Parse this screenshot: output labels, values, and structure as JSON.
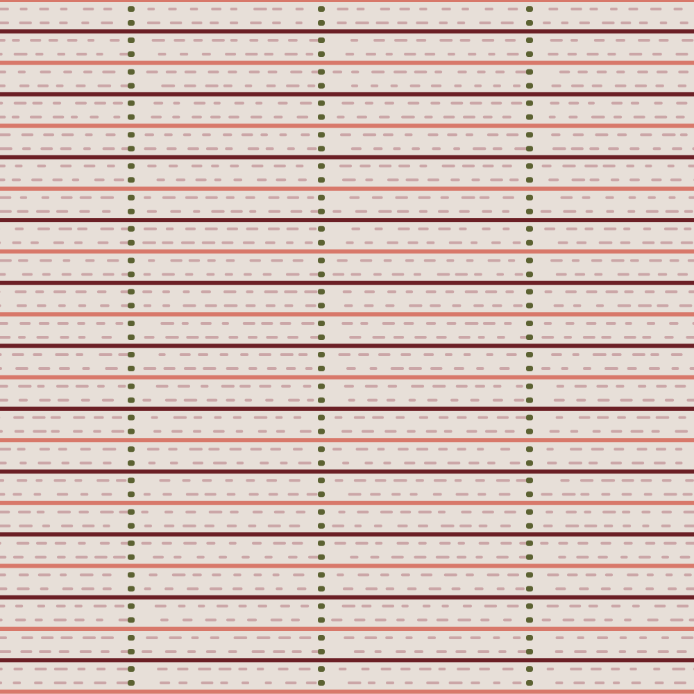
{
  "pattern": {
    "colors": {
      "background": "#e7dfd8",
      "dark_stripe": "#6b1f25",
      "light_stripe": "#d8786a",
      "dash": "#cba6a7",
      "dot": "#5c6232"
    }
  }
}
